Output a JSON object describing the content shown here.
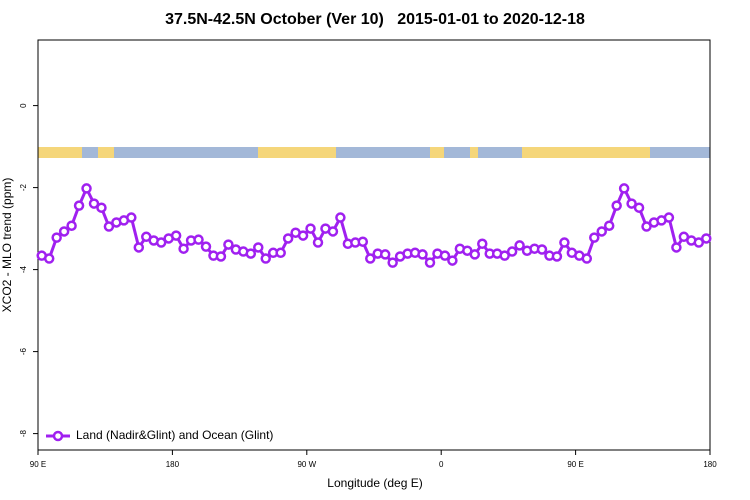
{
  "chart_data": {
    "type": "line",
    "title": "37.5N-42.5N October (Ver 10)   2015-01-01 to 2020-12-18",
    "x_label": "Longitude (deg E)",
    "y_label": "XCO2 - MLO trend (ppm)",
    "xlim": [
      90,
      540
    ],
    "xticks": [
      {
        "value": 90,
        "label": "90 E"
      },
      180,
      {
        "value": 270,
        "label": "90 W"
      },
      {
        "value": 360,
        "label": "0"
      },
      {
        "value": 450,
        "label": "90 E"
      },
      {
        "value": 540,
        "label": "180"
      }
    ],
    "ylim": [
      -8.4,
      1.6
    ],
    "yticks": [
      0,
      -2,
      -4,
      -6,
      -8
    ],
    "legend": "bottom-left",
    "x": [
      92.5,
      97.5,
      102.5,
      107.5,
      112.5,
      117.5,
      122.5,
      127.5,
      132.5,
      137.5,
      142.5,
      147.5,
      152.5,
      157.5,
      162.5,
      167.5,
      172.5,
      177.5,
      182.5,
      187.5,
      192.5,
      197.5,
      202.5,
      207.5,
      212.5,
      217.5,
      222.5,
      227.5,
      232.5,
      237.5,
      242.5,
      247.5,
      252.5,
      257.5,
      262.5,
      267.5,
      272.5,
      277.5,
      282.5,
      287.5,
      292.5,
      297.5,
      302.5,
      307.5,
      312.5,
      317.5,
      322.5,
      327.5,
      332.5,
      337.5,
      342.5,
      347.5,
      352.5,
      357.5,
      362.5,
      367.5,
      372.5,
      377.5,
      382.5,
      387.5,
      392.5,
      397.5,
      402.5,
      407.5,
      412.5,
      417.5,
      422.5,
      427.5,
      432.5,
      437.5,
      442.5,
      447.5,
      452.5,
      457.5,
      462.5,
      467.5,
      472.5,
      477.5,
      482.5,
      487.5,
      492.5,
      497.5,
      502.5,
      507.5,
      512.5,
      517.5,
      522.5,
      527.5,
      532.5,
      537.5
    ],
    "series": [
      {
        "name": "Land (Nadir&Glint) and Ocean (Glint)",
        "color": "#a020f0",
        "values": [
          -3.66,
          -3.73,
          -3.22,
          -3.07,
          -2.93,
          -2.44,
          -2.02,
          -2.39,
          -2.49,
          -2.95,
          -2.85,
          -2.8,
          -2.73,
          -3.46,
          -3.2,
          -3.29,
          -3.34,
          -3.24,
          -3.17,
          -3.49,
          -3.29,
          -3.27,
          -3.44,
          -3.66,
          -3.68,
          -3.39,
          -3.51,
          -3.56,
          -3.61,
          -3.46,
          -3.73,
          -3.59,
          -3.59,
          -3.24,
          -3.1,
          -3.17,
          -3.0,
          -3.34,
          -3.0,
          -3.07,
          -2.73,
          -3.37,
          -3.34,
          -3.32,
          -3.73,
          -3.61,
          -3.63,
          -3.83,
          -3.68,
          -3.61,
          -3.59,
          -3.63,
          -3.83,
          -3.61,
          -3.66,
          -3.78,
          -3.49,
          -3.54,
          -3.63,
          -3.37,
          -3.61,
          -3.61,
          -3.66,
          -3.56,
          -3.41,
          -3.54,
          -3.49,
          -3.51,
          -3.66,
          -3.68,
          -3.34,
          -3.59,
          -3.66,
          -3.73,
          -3.22,
          -3.07,
          -2.93,
          -2.44,
          -2.02,
          -2.39,
          -2.49,
          -2.95,
          -2.85,
          -2.8,
          -2.73,
          -3.46,
          -3.2,
          -3.29,
          -3.34,
          -3.24
        ]
      }
    ]
  }
}
